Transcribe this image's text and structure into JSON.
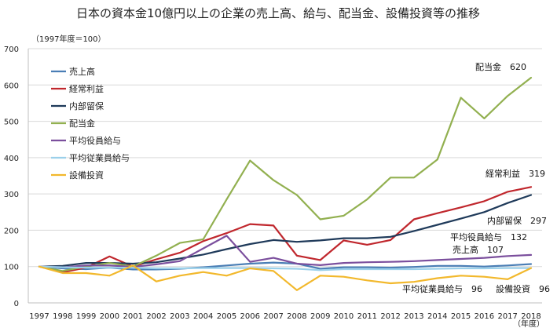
{
  "chart_data": {
    "type": "line",
    "title": "日本の資本金10億円以上の企業の売上高、給与、配当金、設備投資等の推移",
    "unit_note": "（1997年度＝100）",
    "xlabel": "（年度）",
    "ylabel": "",
    "ylim": [
      0,
      700
    ],
    "yticks": [
      0,
      100,
      200,
      300,
      400,
      500,
      600,
      700
    ],
    "x": [
      "1997",
      "1998",
      "1999",
      "2000",
      "2001",
      "2002",
      "2003",
      "2004",
      "2005",
      "2006",
      "2007",
      "2008",
      "2009",
      "2010",
      "2011",
      "2012",
      "2013",
      "2014",
      "2015",
      "2016",
      "2017",
      "2018"
    ],
    "grid": true,
    "legend_position": "top-left",
    "series": [
      {
        "name": "売上高",
        "color": "#4a7eb5",
        "values": [
          100,
          95,
          93,
          97,
          92,
          92,
          94,
          98,
          103,
          108,
          111,
          108,
          94,
          98,
          98,
          97,
          99,
          102,
          102,
          100,
          103,
          107
        ]
      },
      {
        "name": "経常利益",
        "color": "#c0272d",
        "values": [
          100,
          84,
          97,
          128,
          100,
          120,
          138,
          170,
          192,
          217,
          213,
          130,
          118,
          172,
          160,
          173,
          230,
          247,
          263,
          280,
          306,
          319
        ]
      },
      {
        "name": "内部留保",
        "color": "#1f3a5a",
        "values": [
          100,
          102,
          110,
          110,
          108,
          112,
          122,
          133,
          148,
          162,
          173,
          168,
          172,
          178,
          178,
          182,
          198,
          215,
          232,
          250,
          275,
          297
        ]
      },
      {
        "name": "配当金",
        "color": "#92b050",
        "values": [
          100,
          88,
          100,
          110,
          100,
          130,
          165,
          175,
          285,
          392,
          338,
          297,
          230,
          240,
          285,
          345,
          345,
          395,
          565,
          508,
          570,
          620
        ]
      },
      {
        "name": "平均役員給与",
        "color": "#7b4f9d",
        "values": [
          100,
          98,
          103,
          103,
          99,
          106,
          115,
          150,
          185,
          113,
          124,
          108,
          104,
          110,
          112,
          113,
          115,
          118,
          121,
          124,
          129,
          132
        ]
      },
      {
        "name": "平均従業員給与",
        "color": "#9bd0ea",
        "values": [
          100,
          98,
          97,
          97,
          97,
          95,
          95,
          96,
          96,
          96,
          95,
          94,
          90,
          93,
          93,
          93,
          93,
          94,
          95,
          95,
          96,
          96
        ]
      },
      {
        "name": "設備投資",
        "color": "#f2b82c",
        "values": [
          100,
          82,
          82,
          75,
          103,
          59,
          75,
          85,
          75,
          95,
          88,
          35,
          75,
          72,
          62,
          54,
          58,
          68,
          75,
          72,
          65,
          96
        ]
      }
    ],
    "end_labels": [
      {
        "series": "配当金",
        "text": "配当金　620"
      },
      {
        "series": "経常利益",
        "text": "経常利益　319"
      },
      {
        "series": "内部留保",
        "text": "内部留保　297"
      },
      {
        "series": "平均役員給与",
        "text": "平均役員給与　132"
      },
      {
        "series": "売上高",
        "text": "売上高　107"
      },
      {
        "series": "平均従業員給与",
        "text": "平均従業員給与　96"
      },
      {
        "series": "設備投資",
        "text": "設備投資　96"
      }
    ]
  }
}
